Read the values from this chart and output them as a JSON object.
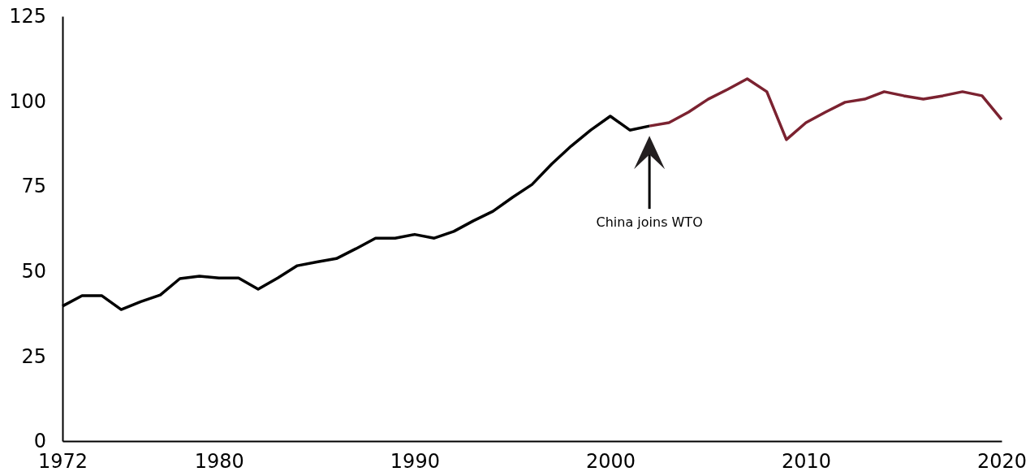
{
  "chart_data": {
    "type": "line",
    "xlim": [
      1972,
      2020
    ],
    "ylim": [
      0,
      125
    ],
    "xticks": [
      1972,
      1980,
      1990,
      2000,
      2010,
      2020
    ],
    "yticks": [
      0,
      25,
      50,
      75,
      100,
      125
    ],
    "grid": false,
    "marker": "none",
    "line_style": "solid",
    "annotations": [
      "China joins WTO"
    ],
    "series": [
      {
        "color": "#000000",
        "x": [
          1972,
          1973,
          1974,
          1975,
          1976,
          1977,
          1978,
          1979,
          1980,
          1981,
          1982,
          1983,
          1984,
          1985,
          1986,
          1987,
          1988,
          1989,
          1990,
          1991,
          1992,
          1993,
          1994,
          1995,
          1996,
          1997,
          1998,
          1999,
          2000,
          2001,
          2002
        ],
        "values": [
          39.7,
          42.8,
          42.8,
          38.7,
          41,
          43,
          47.8,
          48.5,
          48,
          48,
          44.7,
          48,
          51.6,
          52.7,
          53.7,
          56.6,
          59.7,
          59.7,
          60.8,
          59.7,
          61.7,
          64.8,
          67.6,
          71.7,
          75.5,
          81.5,
          86.8,
          91.5,
          95.6,
          91.5,
          92.7
        ]
      },
      {
        "color": "#7b2230",
        "x": [
          2002,
          2003,
          2004,
          2005,
          2006,
          2007,
          2008,
          2009,
          2010,
          2011,
          2012,
          2013,
          2014,
          2015,
          2016,
          2017,
          2018,
          2019,
          2020
        ],
        "values": [
          92.7,
          93.7,
          96.8,
          100.6,
          103.5,
          106.6,
          102.8,
          88.7,
          93.7,
          96.8,
          99.7,
          100.6,
          102.8,
          101.6,
          100.6,
          101.6,
          102.8,
          101.6,
          94.6
        ]
      }
    ]
  }
}
